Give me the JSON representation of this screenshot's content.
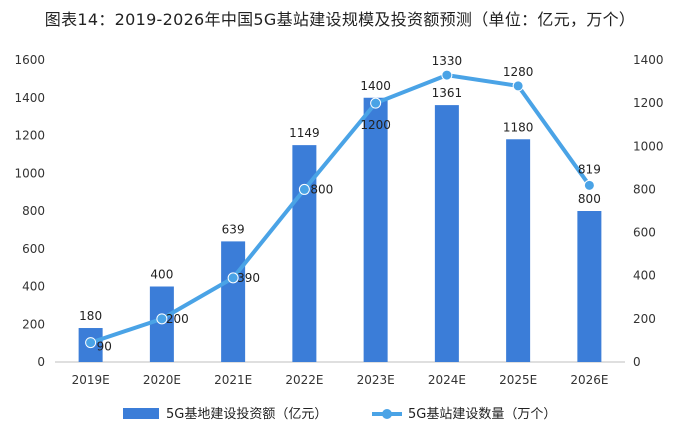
{
  "chart_data": {
    "type": "bar+line",
    "title": "图表14：2019-2026年中国5G基站建设规模及投资额预测（单位：亿元，万个）",
    "categories": [
      "2019E",
      "2020E",
      "2021E",
      "2022E",
      "2023E",
      "2024E",
      "2025E",
      "2026E"
    ],
    "series": [
      {
        "name": "5G基地建设投资额（亿元）",
        "type": "bar",
        "axis": "left",
        "values": [
          180,
          400,
          639,
          1149,
          1400,
          1361,
          1180,
          800
        ]
      },
      {
        "name": "5G基站建设数量（万个）",
        "type": "line",
        "axis": "right",
        "values": [
          90,
          200,
          390,
          800,
          1200,
          1330,
          1280,
          819
        ]
      }
    ],
    "left_axis": {
      "ylim": [
        0,
        1600
      ],
      "ticks": [
        "0",
        "200",
        "400",
        "600",
        "800",
        "1000",
        "1200",
        "1400",
        "1600"
      ]
    },
    "right_axis": {
      "ylim": [
        0,
        1400
      ],
      "ticks": [
        "0",
        "200",
        "400",
        "600",
        "800",
        "1000",
        "1200",
        "1400"
      ]
    },
    "grid": false,
    "legend_placement": "bottom",
    "colors": {
      "bar": "#3B7DD8",
      "line": "#4AA3E6"
    }
  }
}
